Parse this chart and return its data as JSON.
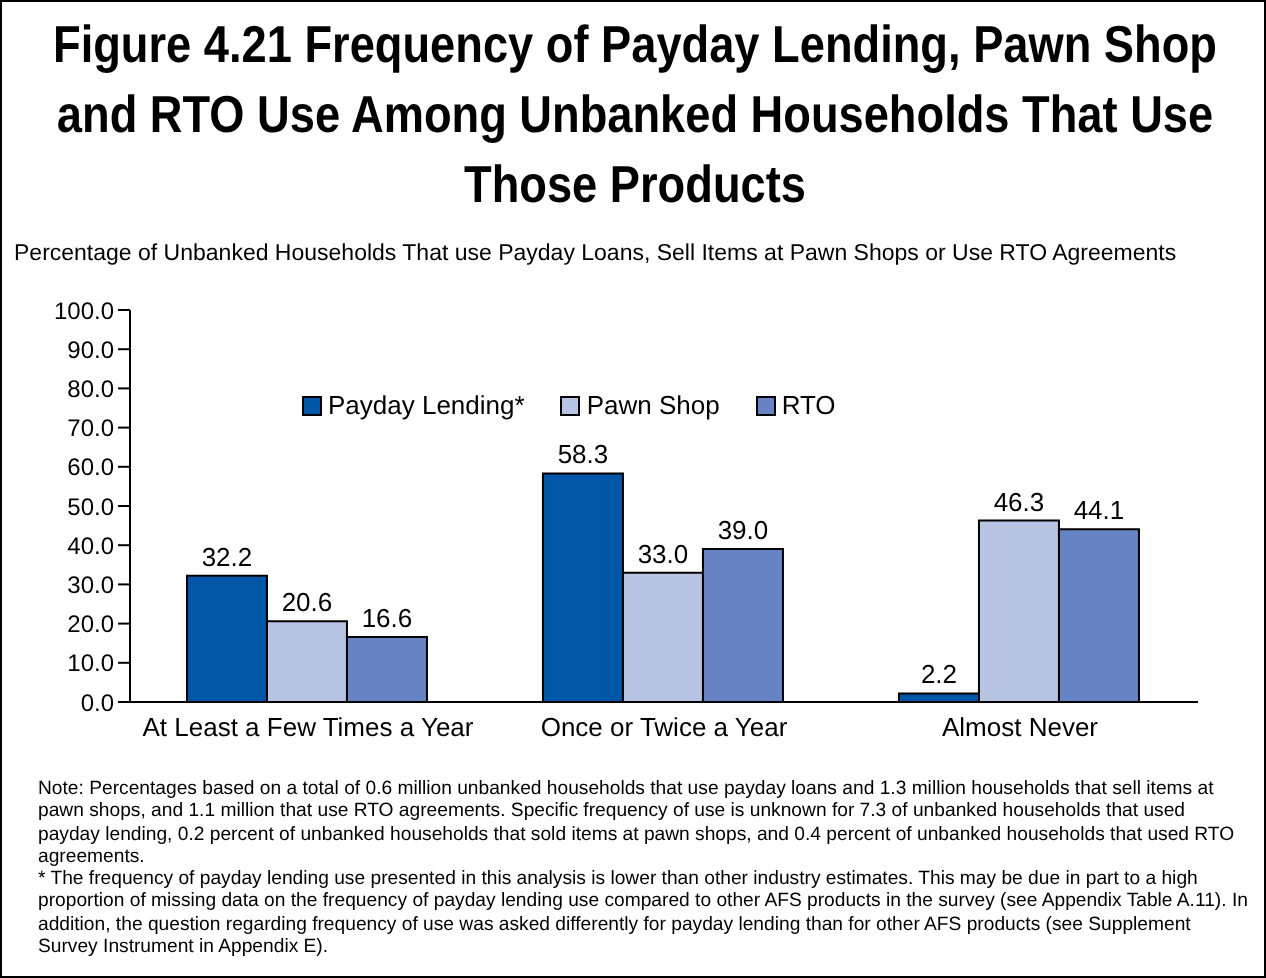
{
  "chart_data": {
    "type": "bar",
    "title": "Figure 4.21  Frequency of Payday Lending, Pawn Shop and RTO Use Among Unbanked Households That Use Those Products",
    "ylabel": "Percentage of Unbanked Households That use Payday Loans, Sell Items at Pawn Shops or Use RTO Agreements",
    "categories": [
      "At Least a Few Times a Year",
      "Once or Twice a Year",
      "Almost Never"
    ],
    "series": [
      {
        "name": "Payday Lending*",
        "color": "#0057a8",
        "values": [
          32.2,
          58.3,
          2.2
        ],
        "value_labels": [
          "32.2",
          "58.3",
          "2.2"
        ]
      },
      {
        "name": "Pawn Shop",
        "color": "#b8c4e4",
        "values": [
          20.6,
          33.0,
          46.3
        ],
        "value_labels": [
          "20.6",
          "33.0",
          "46.3"
        ]
      },
      {
        "name": "RTO",
        "color": "#6684c4",
        "values": [
          16.6,
          39.0,
          44.1
        ],
        "value_labels": [
          "16.6",
          "39.0",
          "44.1"
        ]
      }
    ],
    "ylim": [
      0,
      100
    ],
    "yticks": [
      {
        "value": 0,
        "label": "0.0"
      },
      {
        "value": 10,
        "label": "10.0"
      },
      {
        "value": 20,
        "label": "20.0"
      },
      {
        "value": 30,
        "label": "30.0"
      },
      {
        "value": 40,
        "label": "40.0"
      },
      {
        "value": 50,
        "label": "50.0"
      },
      {
        "value": 60,
        "label": "60.0"
      },
      {
        "value": 70,
        "label": "70.0"
      },
      {
        "value": 80,
        "label": "80.0"
      },
      {
        "value": 90,
        "label": "90.0"
      },
      {
        "value": 100,
        "label": "100.0"
      }
    ],
    "grid": false,
    "legend": "top",
    "annotations": [
      "Note:  Percentages based on a total of 0.6 million unbanked households that use payday loans and 1.3 million households that sell items at pawn shops, and 1.1 million that use RTO agreements. Specific frequency of use is unknown for 7.3 of unbanked households that used payday lending, 0.2 percent of unbanked households that sold items at pawn shops, and 0.4 percent of unbanked households that used RTO agreements.",
      "* The frequency of payday lending use presented in this analysis is lower than other industry estimates. This may be due in part to a high proportion of missing data on the frequency of payday lending use compared to other AFS products in the survey (see Appendix Table A.11). In addition, the question regarding frequency of use was asked differently for payday lending than for other AFS products (see Supplement Survey Instrument in Appendix E)."
    ]
  }
}
